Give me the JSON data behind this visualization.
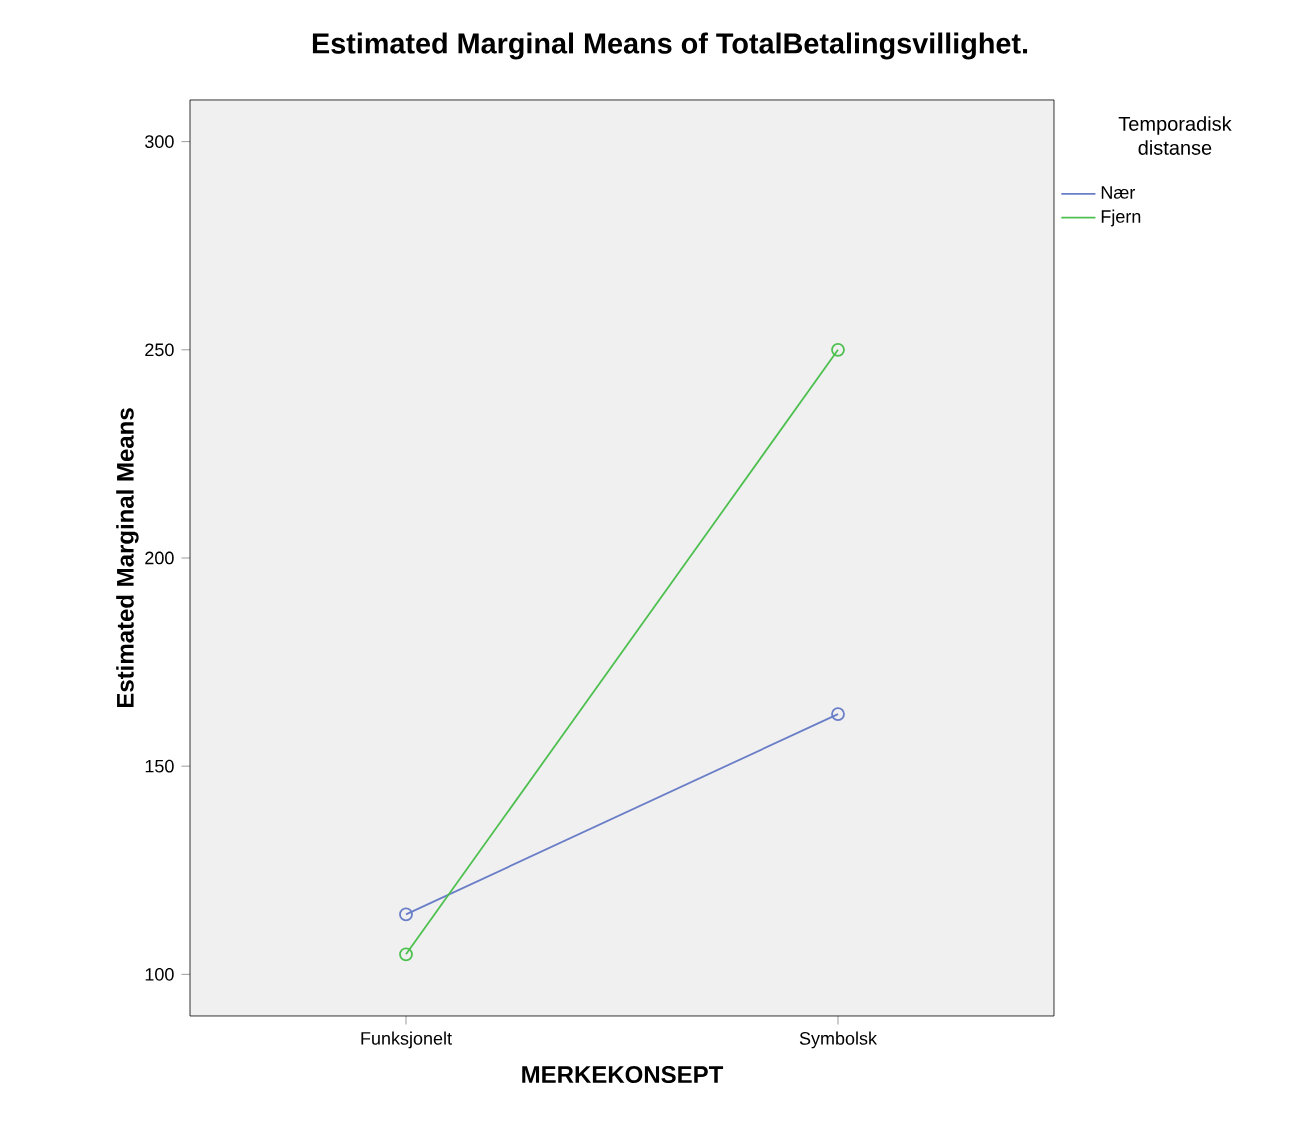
{
  "chart_data": {
    "type": "line",
    "title": "Estimated Marginal Means of TotalBetalingsvillighet.",
    "xlabel": "MERKEKONSEPT",
    "ylabel": "Estimated Marginal Means",
    "categories": [
      "Funksjonelt",
      "Symbolsk"
    ],
    "legend_title": "Temporadisk distanse",
    "series": [
      {
        "name": "Nær",
        "color": "#6a7ec8",
        "values": [
          114.4,
          162.5
        ]
      },
      {
        "name": "Fjern",
        "color": "#4ec050",
        "values": [
          104.8,
          250.0
        ]
      }
    ],
    "ylim": [
      90,
      310
    ],
    "yticks": [
      100,
      150,
      200,
      250,
      300
    ],
    "marker": "circle",
    "line_style": "solid",
    "legend": "top right",
    "grid": false
  }
}
